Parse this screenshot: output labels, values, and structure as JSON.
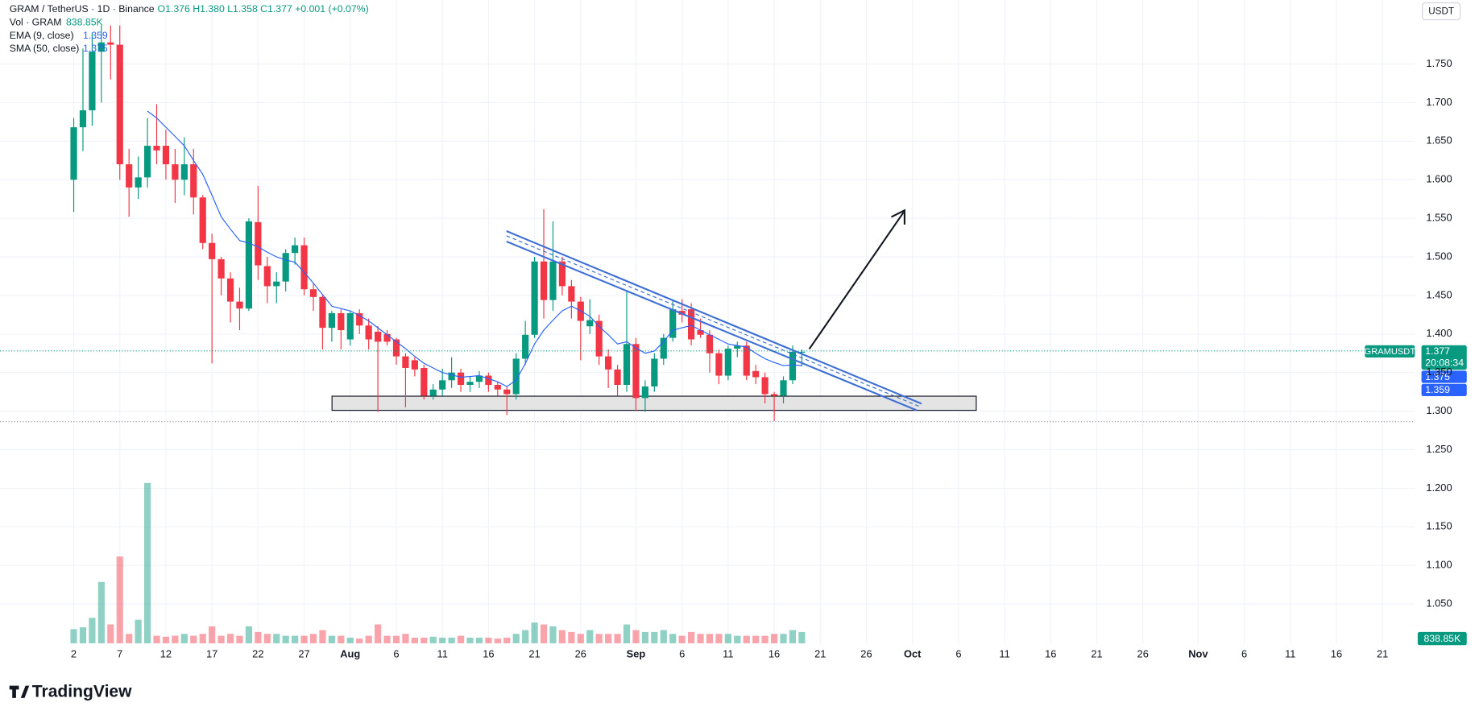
{
  "chart_data": {
    "type": "candlestick",
    "title": "GRAM / TetherUS · 1D · Binance",
    "header_values": "O1.376 H1.380 L1.358 C1.377 +0.001 (+0.07%)",
    "volume_name": "Vol · GRAM",
    "volume_label": "838.85K",
    "currency": "USDT",
    "symbol": "GRAMUSDT",
    "countdown": "20:08:34",
    "brand": "TradingView",
    "up_color": "#089981",
    "down_color": "#f23645",
    "grid": true,
    "ylim": [
      0.999,
      1.833
    ],
    "yticks": [
      {
        "value": 1.05,
        "label": "1.050"
      },
      {
        "value": 1.1,
        "label": "1.100"
      },
      {
        "value": 1.15,
        "label": "1.150"
      },
      {
        "value": 1.2,
        "label": "1.200"
      },
      {
        "value": 1.25,
        "label": "1.250"
      },
      {
        "value": 1.3,
        "label": "1.300"
      },
      {
        "value": 1.35,
        "label": "1.350"
      },
      {
        "value": 1.4,
        "label": "1.400"
      },
      {
        "value": 1.45,
        "label": "1.450"
      },
      {
        "value": 1.5,
        "label": "1.500"
      },
      {
        "value": 1.55,
        "label": "1.550"
      },
      {
        "value": 1.6,
        "label": "1.600"
      },
      {
        "value": 1.65,
        "label": "1.650"
      },
      {
        "value": 1.7,
        "label": "1.700"
      },
      {
        "value": 1.75,
        "label": "1.750"
      }
    ],
    "xlim": [
      "06-24",
      "11-24"
    ],
    "xticks": [
      {
        "value": "07-02",
        "label": "2"
      },
      {
        "value": "07-07",
        "label": "7"
      },
      {
        "value": "07-12",
        "label": "12"
      },
      {
        "value": "07-17",
        "label": "17"
      },
      {
        "value": "07-22",
        "label": "22"
      },
      {
        "value": "07-27",
        "label": "27"
      },
      {
        "value": "08-01",
        "label": "Aug"
      },
      {
        "value": "08-06",
        "label": "6"
      },
      {
        "value": "08-11",
        "label": "11"
      },
      {
        "value": "08-16",
        "label": "16"
      },
      {
        "value": "08-21",
        "label": "21"
      },
      {
        "value": "08-26",
        "label": "26"
      },
      {
        "value": "09-01",
        "label": "Sep"
      },
      {
        "value": "09-06",
        "label": "6"
      },
      {
        "value": "09-11",
        "label": "11"
      },
      {
        "value": "09-16",
        "label": "16"
      },
      {
        "value": "09-21",
        "label": "21"
      },
      {
        "value": "09-26",
        "label": "26"
      },
      {
        "value": "10-01",
        "label": "Oct"
      },
      {
        "value": "10-06",
        "label": "6"
      },
      {
        "value": "10-11",
        "label": "11"
      },
      {
        "value": "10-16",
        "label": "16"
      },
      {
        "value": "10-21",
        "label": "21"
      },
      {
        "value": "10-26",
        "label": "26"
      },
      {
        "value": "11-01",
        "label": "Nov"
      },
      {
        "value": "11-06",
        "label": "6"
      },
      {
        "value": "11-11",
        "label": "11"
      },
      {
        "value": "11-16",
        "label": "16"
      },
      {
        "value": "11-21",
        "label": "21"
      }
    ],
    "x": [
      "07-02",
      "07-03",
      "07-04",
      "07-05",
      "07-06",
      "07-07",
      "07-08",
      "07-09",
      "07-10",
      "07-11",
      "07-12",
      "07-13",
      "07-14",
      "07-15",
      "07-16",
      "07-17",
      "07-18",
      "07-19",
      "07-20",
      "07-21",
      "07-22",
      "07-23",
      "07-24",
      "07-25",
      "07-26",
      "07-27",
      "07-28",
      "07-29",
      "07-30",
      "07-31",
      "08-01",
      "08-02",
      "08-03",
      "08-04",
      "08-05",
      "08-06",
      "08-07",
      "08-08",
      "08-09",
      "08-10",
      "08-11",
      "08-12",
      "08-13",
      "08-14",
      "08-15",
      "08-16",
      "08-17",
      "08-18",
      "08-19",
      "08-20",
      "08-21",
      "08-22",
      "08-23",
      "08-24",
      "08-25",
      "08-26",
      "08-27",
      "08-28",
      "08-29",
      "08-30",
      "08-31",
      "09-01",
      "09-02",
      "09-03",
      "09-04",
      "09-05",
      "09-06",
      "09-07",
      "09-08",
      "09-09",
      "09-10",
      "09-11",
      "09-12",
      "09-13",
      "09-14",
      "09-15",
      "09-16",
      "09-17",
      "09-18",
      "09-19"
    ],
    "open": [
      1.6,
      1.668,
      1.69,
      1.766,
      1.778,
      1.775,
      1.62,
      1.59,
      1.603,
      1.644,
      1.644,
      1.62,
      1.6,
      1.62,
      1.577,
      1.518,
      1.497,
      1.472,
      1.442,
      1.433,
      1.545,
      1.488,
      1.462,
      1.468,
      1.505,
      1.515,
      1.458,
      1.448,
      1.408,
      1.427,
      1.393,
      1.427,
      1.411,
      1.403,
      1.4,
      1.393,
      1.371,
      1.366,
      1.356,
      1.32,
      1.328,
      1.34,
      1.35,
      1.334,
      1.338,
      1.346,
      1.334,
      1.328,
      1.322,
      1.368,
      1.399,
      1.494,
      1.444,
      1.494,
      1.462,
      1.442,
      1.41,
      1.417,
      1.371,
      1.354,
      1.334,
      1.387,
      1.317,
      1.332,
      1.368,
      1.395,
      1.43,
      1.432,
      1.405,
      1.399,
      1.375,
      1.346,
      1.381,
      1.385,
      1.352,
      1.344,
      1.322,
      1.32,
      1.34,
      1.376
    ],
    "high": [
      1.68,
      1.77,
      1.79,
      1.8,
      1.8,
      1.8,
      1.64,
      1.63,
      1.68,
      1.698,
      1.665,
      1.64,
      1.655,
      1.64,
      1.58,
      1.53,
      1.5,
      1.48,
      1.46,
      1.55,
      1.592,
      1.5,
      1.48,
      1.51,
      1.525,
      1.525,
      1.465,
      1.45,
      1.43,
      1.432,
      1.43,
      1.432,
      1.42,
      1.41,
      1.405,
      1.395,
      1.375,
      1.37,
      1.36,
      1.335,
      1.355,
      1.37,
      1.355,
      1.345,
      1.352,
      1.35,
      1.338,
      1.332,
      1.375,
      1.417,
      1.5,
      1.562,
      1.546,
      1.5,
      1.47,
      1.448,
      1.445,
      1.425,
      1.38,
      1.36,
      1.457,
      1.395,
      1.34,
      1.375,
      1.4,
      1.444,
      1.445,
      1.44,
      1.42,
      1.405,
      1.38,
      1.385,
      1.39,
      1.39,
      1.36,
      1.35,
      1.325,
      1.345,
      1.385,
      1.38
    ],
    "low": [
      1.558,
      1.637,
      1.67,
      1.7,
      1.73,
      1.6,
      1.552,
      1.575,
      1.59,
      1.62,
      1.6,
      1.57,
      1.58,
      1.555,
      1.51,
      1.362,
      1.45,
      1.415,
      1.405,
      1.43,
      1.47,
      1.44,
      1.44,
      1.455,
      1.49,
      1.45,
      1.43,
      1.38,
      1.39,
      1.38,
      1.385,
      1.4,
      1.38,
      1.299,
      1.385,
      1.36,
      1.305,
      1.345,
      1.315,
      1.315,
      1.32,
      1.33,
      1.325,
      1.325,
      1.33,
      1.325,
      1.32,
      1.295,
      1.315,
      1.36,
      1.395,
      1.42,
      1.43,
      1.45,
      1.42,
      1.366,
      1.4,
      1.36,
      1.33,
      1.32,
      1.325,
      1.3,
      1.299,
      1.325,
      1.36,
      1.39,
      1.415,
      1.385,
      1.395,
      1.35,
      1.335,
      1.34,
      1.37,
      1.34,
      1.335,
      1.31,
      1.287,
      1.31,
      1.335,
      1.358
    ],
    "close": [
      1.668,
      1.69,
      1.766,
      1.778,
      1.775,
      1.62,
      1.59,
      1.603,
      1.644,
      1.638,
      1.62,
      1.6,
      1.62,
      1.577,
      1.518,
      1.497,
      1.472,
      1.442,
      1.433,
      1.546,
      1.489,
      1.462,
      1.468,
      1.505,
      1.515,
      1.458,
      1.448,
      1.408,
      1.427,
      1.405,
      1.427,
      1.411,
      1.393,
      1.39,
      1.39,
      1.371,
      1.356,
      1.354,
      1.32,
      1.328,
      1.34,
      1.35,
      1.334,
      1.338,
      1.346,
      1.334,
      1.328,
      1.322,
      1.368,
      1.399,
      1.494,
      1.444,
      1.494,
      1.462,
      1.442,
      1.417,
      1.418,
      1.371,
      1.354,
      1.334,
      1.387,
      1.317,
      1.332,
      1.368,
      1.395,
      1.432,
      1.425,
      1.393,
      1.399,
      1.375,
      1.346,
      1.381,
      1.385,
      1.346,
      1.344,
      1.322,
      1.32,
      1.34,
      1.377,
      1.377
    ],
    "volume": [
      1050000,
      1190000,
      1890000,
      4550000,
      1400000,
      6440000,
      700000,
      1750000,
      11900000,
      560000,
      490000,
      560000,
      700000,
      560000,
      700000,
      1260000,
      560000,
      700000,
      560000,
      1260000,
      840000,
      700000,
      700000,
      560000,
      560000,
      560000,
      700000,
      980000,
      560000,
      560000,
      420000,
      350000,
      560000,
      1400000,
      560000,
      560000,
      700000,
      420000,
      420000,
      490000,
      420000,
      420000,
      560000,
      420000,
      420000,
      420000,
      350000,
      420000,
      700000,
      980000,
      1540000,
      1400000,
      1260000,
      980000,
      840000,
      700000,
      980000,
      700000,
      700000,
      700000,
      1400000,
      980000,
      840000,
      840000,
      980000,
      700000,
      560000,
      840000,
      700000,
      700000,
      700000,
      700000,
      560000,
      560000,
      560000,
      560000,
      700000,
      700000,
      980000,
      838850
    ],
    "ema": {
      "name": "EMA (9, close)",
      "color": "#2962ff",
      "values": [
        null,
        null,
        null,
        null,
        null,
        null,
        null,
        null,
        1.689,
        1.68,
        1.668,
        1.656,
        1.644,
        1.625,
        1.607,
        1.58,
        1.552,
        1.536,
        1.521,
        1.518,
        1.513,
        1.506,
        1.5,
        1.496,
        1.493,
        1.48,
        1.466,
        1.451,
        1.436,
        1.433,
        1.43,
        1.424,
        1.417,
        1.408,
        1.399,
        1.39,
        1.381,
        1.371,
        1.362,
        1.356,
        1.35,
        1.347,
        1.344,
        1.345,
        1.346,
        1.342,
        1.338,
        1.332,
        1.34,
        1.362,
        1.387,
        1.405,
        1.418,
        1.43,
        1.436,
        1.43,
        1.423,
        1.41,
        1.399,
        1.387,
        1.39,
        1.382,
        1.375,
        1.378,
        1.39,
        1.405,
        1.408,
        1.411,
        1.405,
        1.399,
        1.393,
        1.387,
        1.385,
        1.383,
        1.375,
        1.368,
        1.363,
        1.359,
        1.36,
        1.359
      ]
    },
    "sma": {
      "name": "SMA (50, close)",
      "value": 1.375
    }
  }
}
